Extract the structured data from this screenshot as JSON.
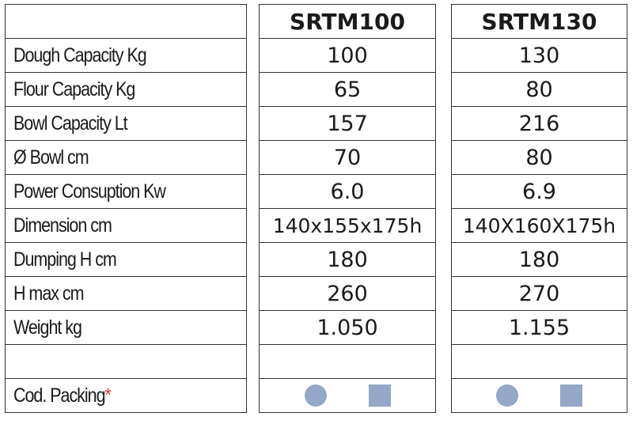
{
  "headers": [
    "SRTM100",
    "SRTM130"
  ],
  "labels": [
    "Dough Capacity Kg",
    "Flour Capacity Kg",
    "Bowl Capacity Lt",
    "Ø Bowl cm",
    "Power Consuption Kw",
    "Dimension cm",
    "Dumping H cm",
    "H max cm",
    "Weight kg"
  ],
  "packing_label": "Cod. Packing",
  "packing_mark": "*",
  "srtm100": [
    "100",
    "65",
    "157",
    "70",
    "6.0",
    "140x155x175h",
    "180",
    "260",
    "1.050"
  ],
  "srtm130": [
    "130",
    "80",
    "216",
    "80",
    "6.9",
    "140X160X175h",
    "180",
    "270",
    "1.155"
  ],
  "colors": {
    "symbol": "#94a7c6",
    "asterisk": "#e33333"
  },
  "packing_icons": [
    "circle-icon",
    "square-icon"
  ]
}
